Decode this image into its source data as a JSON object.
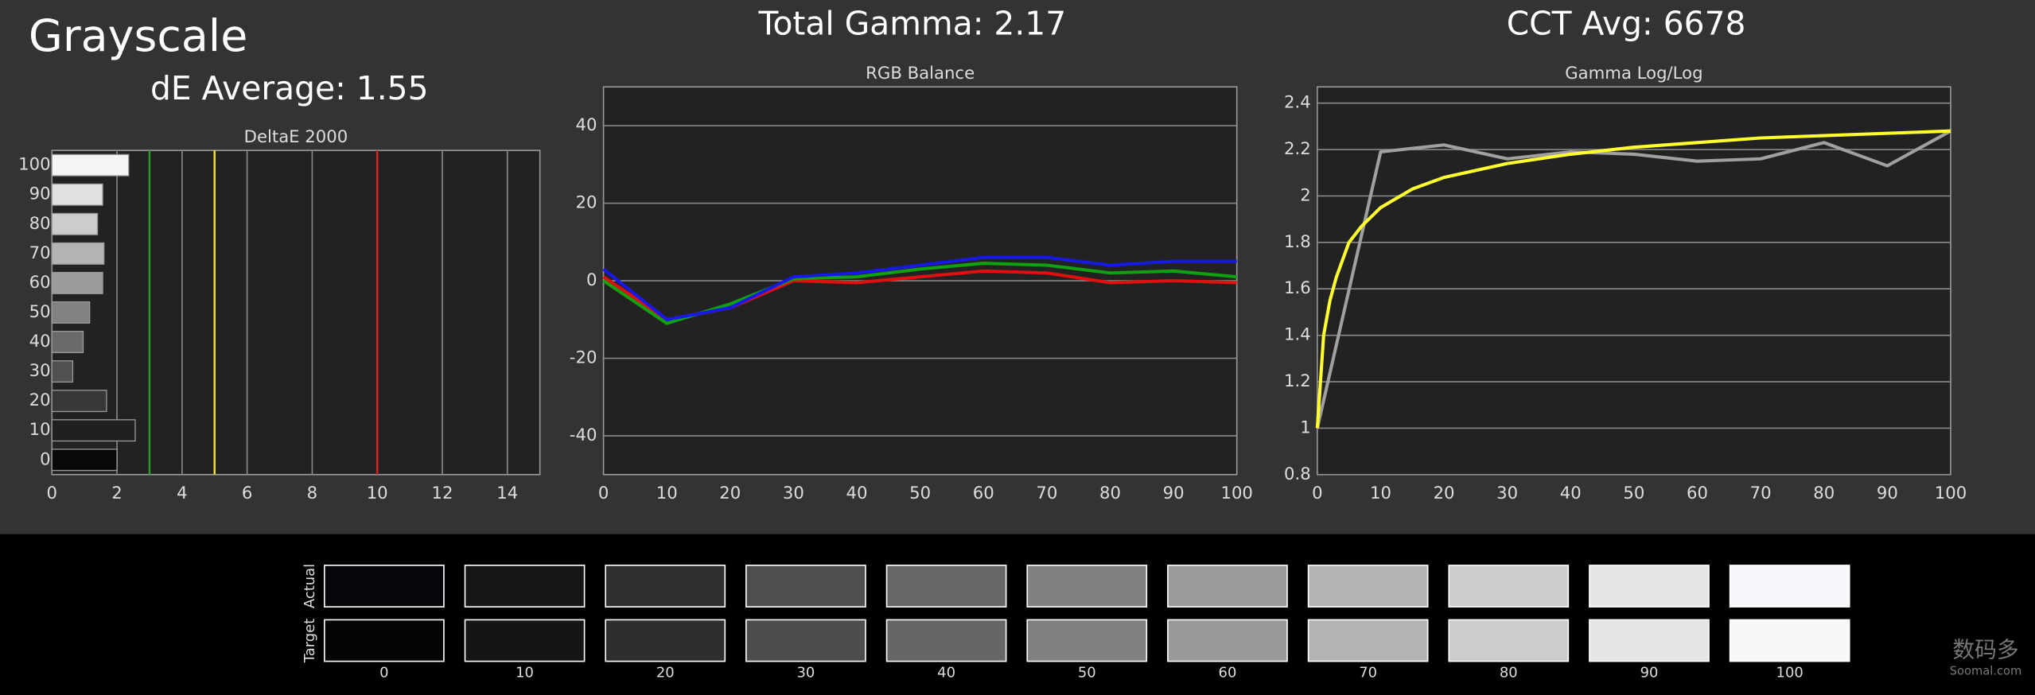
{
  "header": {
    "title": "Grayscale",
    "de_average": "dE Average: 1.55",
    "total_gamma": "Total Gamma: 2.17",
    "cct_avg": "CCT Avg: 6678"
  },
  "chart_data": [
    {
      "type": "hbar",
      "title": "DeltaE 2000",
      "categories": [
        "100",
        "90",
        "80",
        "70",
        "60",
        "50",
        "40",
        "30",
        "20",
        "10",
        "0"
      ],
      "values": [
        2.36,
        1.56,
        1.4,
        1.6,
        1.56,
        1.16,
        0.96,
        0.64,
        1.68,
        2.56,
        2.0
      ],
      "colors": [
        "#f4f4f4",
        "#e0e0e0",
        "#cccccc",
        "#b4b4b4",
        "#9c9c9c",
        "#828282",
        "#6a6a6a",
        "#505050",
        "#383838",
        "#202020",
        "#080808"
      ],
      "xlim": [
        0,
        15
      ],
      "xticks": [
        0,
        2,
        4,
        6,
        8,
        10,
        12,
        14
      ],
      "grid": true,
      "reference_lines": [
        {
          "value": 3,
          "color": "#2e9b2e"
        },
        {
          "value": 5,
          "color": "#f0e030"
        },
        {
          "value": 10,
          "color": "#e02020"
        }
      ]
    },
    {
      "type": "line",
      "title": "RGB Balance",
      "x": [
        0,
        10,
        20,
        30,
        40,
        50,
        60,
        70,
        80,
        90,
        100
      ],
      "series": [
        {
          "color": "#e01010",
          "values": [
            1,
            -10,
            -7,
            0,
            -0.5,
            1,
            2.5,
            2,
            -0.5,
            0,
            -0.5
          ]
        },
        {
          "color": "#10a010",
          "values": [
            0,
            -11,
            -6,
            0.5,
            1,
            3,
            4.5,
            4,
            2,
            2.5,
            1
          ]
        },
        {
          "color": "#1818e8",
          "values": [
            3,
            -10,
            -7,
            1,
            2,
            4,
            6,
            6,
            4,
            5,
            5
          ]
        }
      ],
      "xlim": [
        0,
        100
      ],
      "xticks": [
        0,
        10,
        20,
        30,
        40,
        50,
        60,
        70,
        80,
        90,
        100
      ],
      "ylim": [
        -50,
        50
      ],
      "yticks": [
        -40,
        -20,
        0,
        20,
        40
      ],
      "grid": true
    },
    {
      "type": "line",
      "title": "Gamma Log/Log",
      "x": [
        0,
        10,
        20,
        30,
        40,
        50,
        60,
        70,
        80,
        90,
        100
      ],
      "series": [
        {
          "color": "#a0a0a0",
          "values": [
            1,
            2.19,
            2.22,
            2.16,
            2.19,
            2.18,
            2.15,
            2.16,
            2.23,
            2.13,
            2.28
          ]
        },
        {
          "color": "#ffff30",
          "x": [
            0,
            1,
            2,
            3,
            5,
            7,
            10,
            15,
            20,
            30,
            40,
            50,
            60,
            70,
            80,
            90,
            100
          ],
          "values": [
            1,
            1.4,
            1.55,
            1.65,
            1.8,
            1.87,
            1.95,
            2.03,
            2.08,
            2.14,
            2.18,
            2.21,
            2.23,
            2.25,
            2.26,
            2.27,
            2.28
          ]
        }
      ],
      "xlim": [
        0,
        100
      ],
      "xticks": [
        0,
        10,
        20,
        30,
        40,
        50,
        60,
        70,
        80,
        90,
        100
      ],
      "ylim": [
        0.8,
        2.47
      ],
      "yticks": [
        0.8,
        1,
        1.2,
        1.4,
        1.6,
        1.8,
        2,
        2.2,
        2.4
      ],
      "grid": true
    }
  ],
  "swatches": {
    "row_labels": [
      "Actual",
      "Target"
    ],
    "labels": [
      0,
      10,
      20,
      30,
      40,
      50,
      60,
      70,
      80,
      90,
      100
    ],
    "actual_colors": [
      "#06060a",
      "#161616",
      "#2f2f2f",
      "#4e4e4e",
      "#676767",
      "#818181",
      "#9a9a9a",
      "#b3b3b3",
      "#cdcdcd",
      "#e6e6e9",
      "#f8f8fc"
    ],
    "target_colors": [
      "#050505",
      "#151515",
      "#2e2e2e",
      "#4d4d4d",
      "#666666",
      "#808080",
      "#999999",
      "#b3b3b3",
      "#cccccc",
      "#e6e6e6",
      "#f8f8f8"
    ]
  },
  "watermark": {
    "logo": "数码多",
    "site": "Soomal.com"
  }
}
